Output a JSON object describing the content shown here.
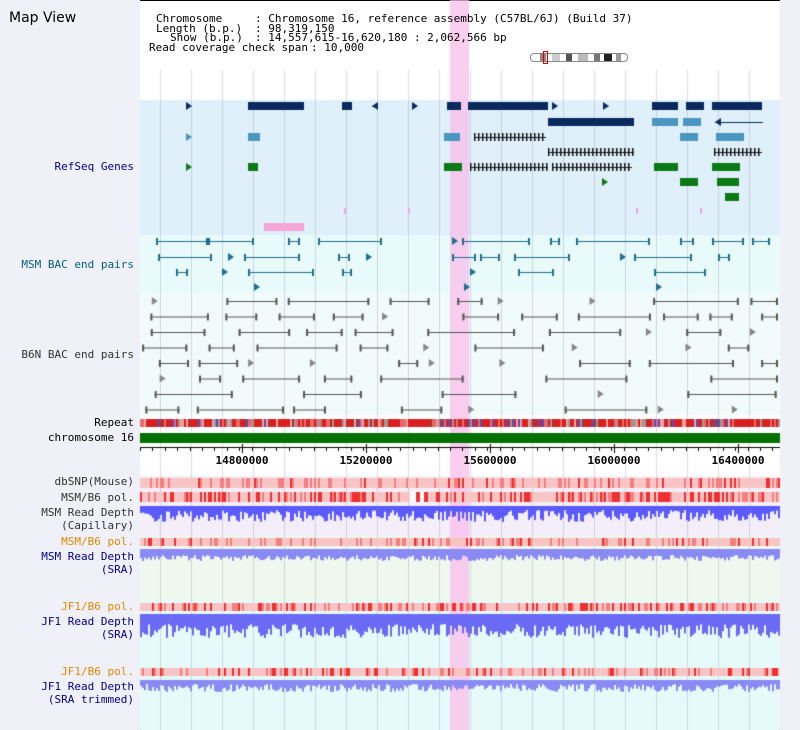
{
  "header": {
    "title": "Map View",
    "chromosome_key": "Chromosome",
    "chromosome_val": ": Chromosome 16, reference assembly (C57BL/6J) (Build 37)",
    "length_key": "Length (b.p.)",
    "length_val": ": 98,319,150",
    "show_key": "Show (b.p.)",
    "show_val": ": 14,557,615-16,620,180 : 2,062,566 bp",
    "coverage_key": "Read coverage check span",
    "coverage_val": ": 10,000"
  },
  "tracks": {
    "refseq": "RefSeq Genes",
    "msm_bac": "MSM BAC end pairs",
    "b6n_bac": "B6N BAC end pairs",
    "repeat": "Repeat",
    "chromosome": "chromosome 16",
    "dbsnp": "dbSNP(Mouse)",
    "msm_pol": "MSM/B6 pol.",
    "msm_depth_cap_1": "MSM Read Depth",
    "msm_depth_cap_2": "(Capillary)",
    "msm_pol2": "MSM/B6 pol.",
    "msm_depth_sra_1": "MSM Read Depth",
    "msm_depth_sra_2": "(SRA)",
    "jf1_pol": "JF1/B6 pol.",
    "jf1_depth_sra_1": "JF1 Read Depth",
    "jf1_depth_sra_2": "(SRA)",
    "jf1_pol2": "JF1/B6 pol.",
    "jf1_depth_trim_1": "JF1 Read Depth",
    "jf1_depth_trim_2": "(SRA trimmed)"
  },
  "axis": {
    "ticks": [
      "14800000",
      "15200000",
      "15600000",
      "16000000",
      "16400000"
    ]
  },
  "colors": {
    "refseq_bg": "#dff0fa",
    "msm_bac_bg": "#e8fafa",
    "b6n_bac_bg": "#f2fbfb",
    "depth_bg": "#f3eef9",
    "sra_bg": "#eef8ee",
    "jf1_bg": "#e6fafa",
    "highlight": "#f9d0ee",
    "gene_dark": "#0a2a5e",
    "gene_mid": "#4a96c0",
    "gene_green": "#0b7a14",
    "msm_bac_line": "#1f6f8f",
    "b6n_line": "#555555",
    "chromosome_bar": "#007000",
    "depth_bar": "#5a5aff",
    "pol_red": "#ee3030",
    "label_blue": "#00008b",
    "label_teal": "#00607f",
    "label_orange": "#e08800",
    "label_gray": "#333333"
  }
}
